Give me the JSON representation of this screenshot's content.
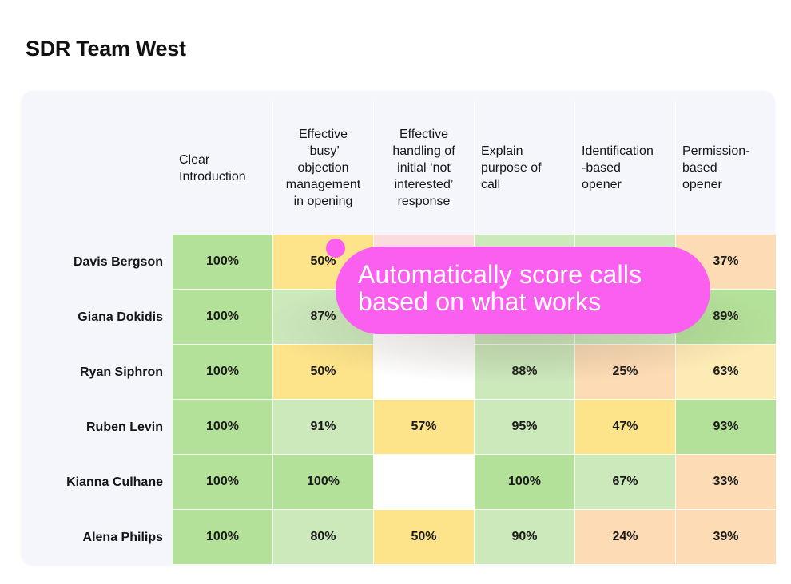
{
  "page": {
    "title": "SDR Team West"
  },
  "callout": {
    "line1": "Automatically score calls",
    "line2": "based on what works",
    "color": "#fb5ff0"
  },
  "colors": {
    "dark_green": "#b4e19a",
    "light_green": "#cce9bc",
    "yellow": "#fde389",
    "light_yellow": "#fdebb5",
    "orange": "#fddcb5",
    "pink": "#fbdbde",
    "empty": "#ffffff"
  },
  "chart_data": {
    "type": "heatmap",
    "title": "SDR Team West",
    "columns": [
      "Clear\nIntroduction",
      "Effective\n‘busy’\nobjection\nmanagement\nin opening",
      "Effective\nhandling of\ninitial ‘not\ninterested’\nresponse",
      "Explain\npurpose of\ncall",
      "Identification\n-based\nopener",
      "Permission-\nbased\nopener"
    ],
    "rows": [
      "Davis Bergson",
      "Giana Dokidis",
      "Ryan Siphron",
      "Ruben Levin",
      "Kianna Culhane",
      "Alena Philips"
    ],
    "values": [
      [
        100,
        50,
        null,
        null,
        null,
        37
      ],
      [
        100,
        87,
        null,
        null,
        null,
        89
      ],
      [
        100,
        50,
        null,
        88,
        25,
        63
      ],
      [
        100,
        91,
        57,
        95,
        47,
        93
      ],
      [
        100,
        100,
        null,
        100,
        67,
        33
      ],
      [
        100,
        80,
        50,
        90,
        24,
        39
      ]
    ],
    "labels": [
      [
        "100%",
        "50%",
        "",
        "",
        "",
        "37%"
      ],
      [
        "100%",
        "87%",
        "",
        "",
        "",
        "89%"
      ],
      [
        "100%",
        "50%",
        "",
        "88%",
        "25%",
        "63%"
      ],
      [
        "100%",
        "91%",
        "57%",
        "95%",
        "47%",
        "93%"
      ],
      [
        "100%",
        "100%",
        "",
        "100%",
        "67%",
        "33%"
      ],
      [
        "100%",
        "80%",
        "50%",
        "90%",
        "24%",
        "39%"
      ]
    ],
    "cell_colors": [
      [
        "dark_green",
        "yellow",
        "pink",
        "light_green",
        "light_green",
        "orange"
      ],
      [
        "dark_green",
        "light_green",
        "empty",
        "light_green",
        "light_green",
        "dark_green"
      ],
      [
        "dark_green",
        "yellow",
        "empty",
        "light_green",
        "orange",
        "light_yellow"
      ],
      [
        "dark_green",
        "light_green",
        "yellow",
        "light_green",
        "yellow",
        "dark_green"
      ],
      [
        "dark_green",
        "dark_green",
        "empty",
        "dark_green",
        "light_green",
        "orange"
      ],
      [
        "dark_green",
        "light_green",
        "yellow",
        "light_green",
        "orange",
        "orange"
      ]
    ],
    "legend": "none"
  }
}
